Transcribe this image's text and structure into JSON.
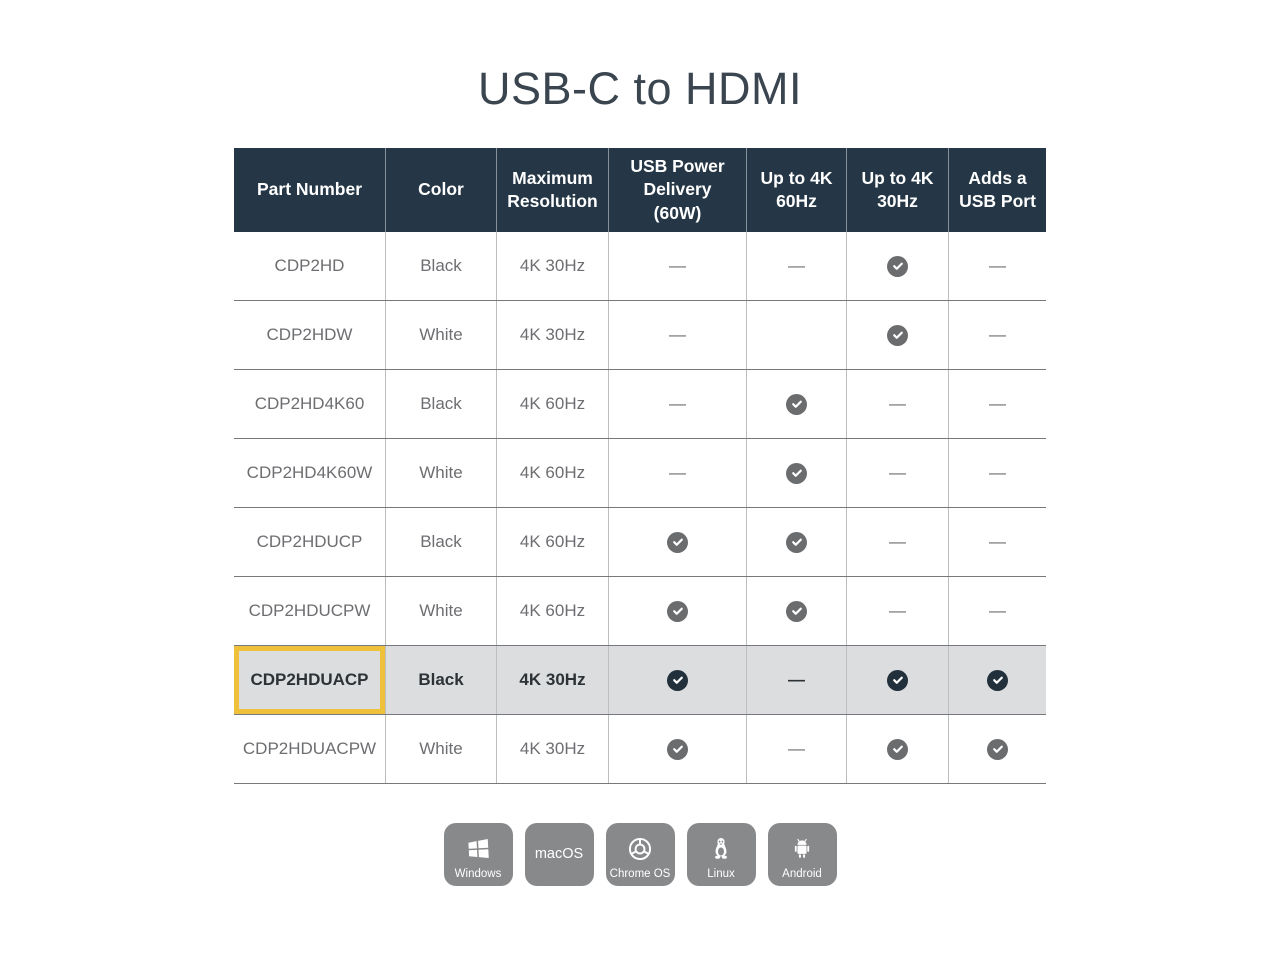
{
  "title": "USB-C to HDMI",
  "table": {
    "columns": [
      "Part Number",
      "Color",
      "Maximum Resolution",
      "USB Power Delivery (60W)",
      "Up to 4K 60Hz",
      "Up to 4K 30Hz",
      "Adds a USB Port"
    ],
    "dash_glyph": "—",
    "rows": [
      {
        "part_number": "CDP2HD",
        "color": "Black",
        "max_resolution": "4K 30Hz",
        "usb_power_delivery": "dash",
        "up_to_4k60": "dash",
        "up_to_4k30": "check",
        "adds_usb_port": "dash",
        "highlighted": false
      },
      {
        "part_number": "CDP2HDW",
        "color": "White",
        "max_resolution": "4K 30Hz",
        "usb_power_delivery": "dash",
        "up_to_4k60": "",
        "up_to_4k30": "check",
        "adds_usb_port": "dash",
        "highlighted": false
      },
      {
        "part_number": "CDP2HD4K60",
        "color": "Black",
        "max_resolution": "4K 60Hz",
        "usb_power_delivery": "dash",
        "up_to_4k60": "check",
        "up_to_4k30": "dash",
        "adds_usb_port": "dash",
        "highlighted": false
      },
      {
        "part_number": "CDP2HD4K60W",
        "color": "White",
        "max_resolution": "4K 60Hz",
        "usb_power_delivery": "dash",
        "up_to_4k60": "check",
        "up_to_4k30": "dash",
        "adds_usb_port": "dash",
        "highlighted": false
      },
      {
        "part_number": "CDP2HDUCP",
        "color": "Black",
        "max_resolution": "4K 60Hz",
        "usb_power_delivery": "check",
        "up_to_4k60": "check",
        "up_to_4k30": "dash",
        "adds_usb_port": "dash",
        "highlighted": false
      },
      {
        "part_number": "CDP2HDUCPW",
        "color": "White",
        "max_resolution": "4K 60Hz",
        "usb_power_delivery": "check",
        "up_to_4k60": "check",
        "up_to_4k30": "dash",
        "adds_usb_port": "dash",
        "highlighted": false
      },
      {
        "part_number": "CDP2HDUACP",
        "color": "Black",
        "max_resolution": "4K 30Hz",
        "usb_power_delivery": "check",
        "up_to_4k60": "dash",
        "up_to_4k30": "check",
        "adds_usb_port": "check",
        "highlighted": true
      },
      {
        "part_number": "CDP2HDUACPW",
        "color": "White",
        "max_resolution": "4K 30Hz",
        "usb_power_delivery": "check",
        "up_to_4k60": "dash",
        "up_to_4k30": "check",
        "adds_usb_port": "check",
        "highlighted": false
      }
    ]
  },
  "os_badges": [
    {
      "label": "Windows",
      "icon": "windows-logo-icon"
    },
    {
      "label": "macOS",
      "icon": null
    },
    {
      "label": "Chrome OS",
      "icon": "chrome-logo-icon"
    },
    {
      "label": "Linux",
      "icon": "linux-tux-icon"
    },
    {
      "label": "Android",
      "icon": "android-robot-icon"
    }
  ],
  "colors": {
    "title_color": "#3a4550",
    "header_bg": "#253746",
    "header_text": "#ffffff",
    "row_text": "#6d6e71",
    "hline": "#77787b",
    "vline": "#bdbebf",
    "check_gray": "#6b6c6e",
    "check_navy": "#22303c",
    "highlight_bg": "#dcddde",
    "highlight_text": "#2d3237",
    "highlight_border": "#efc13b",
    "badge_bg": "#88898b",
    "badge_text": "#ffffff"
  }
}
